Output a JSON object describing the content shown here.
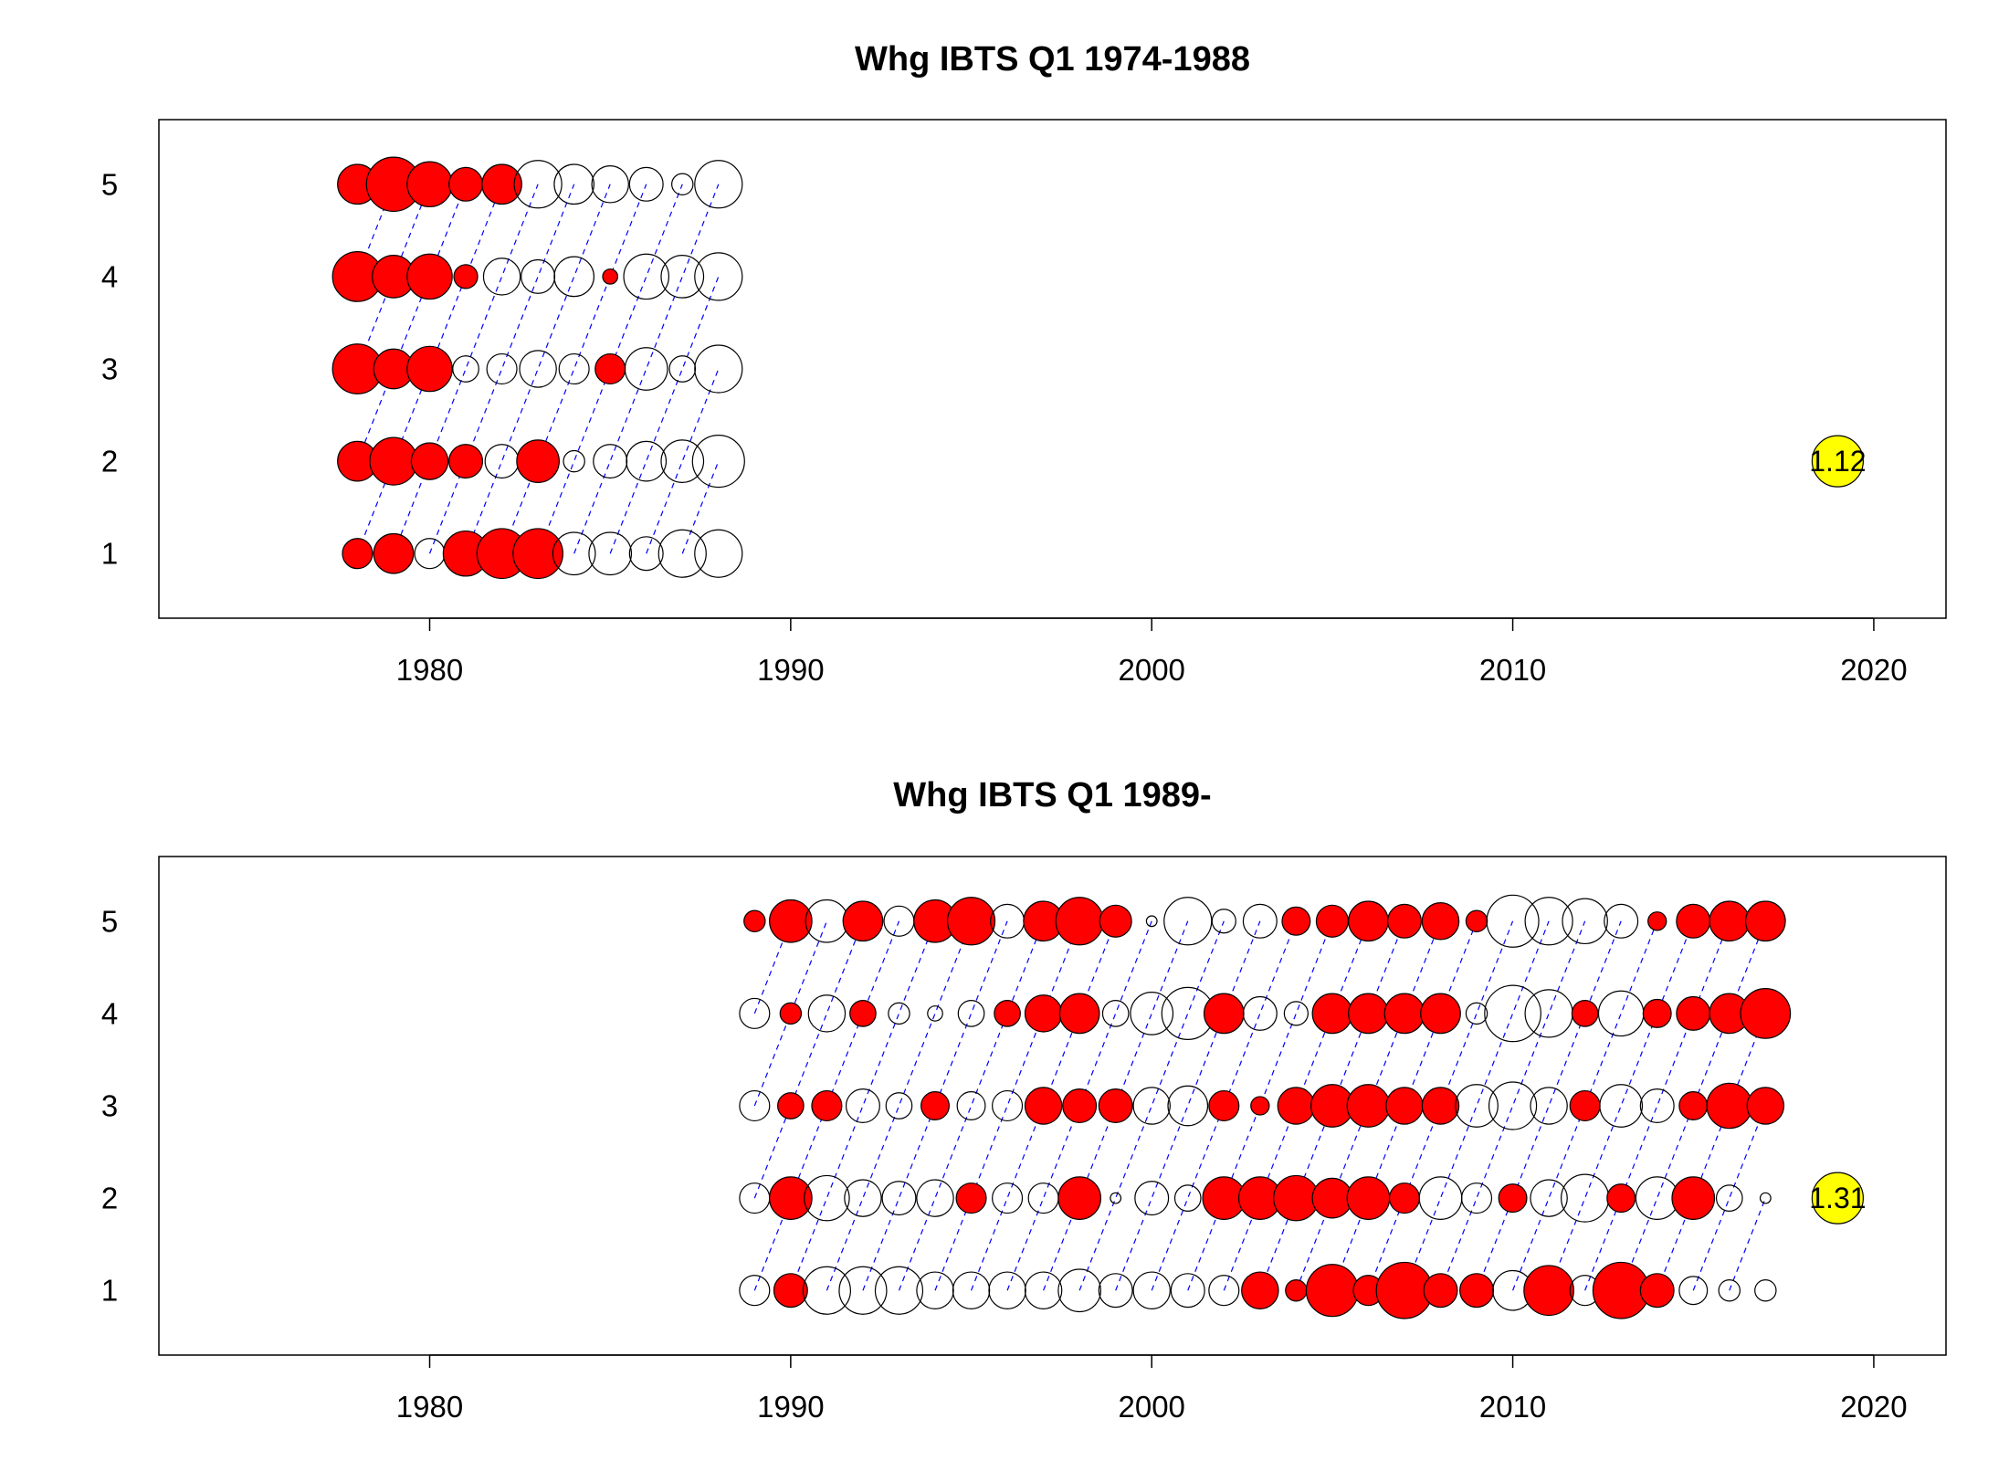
{
  "chart_data": [
    {
      "type": "scatter",
      "title": "Whg IBTS Q1 1974-1988",
      "xlabel": "",
      "ylabel": "",
      "x_ticks": [
        1980,
        1990,
        2000,
        2010,
        2020
      ],
      "y_ticks": [
        1,
        2,
        3,
        4,
        5
      ],
      "xlim": [
        1972.5,
        2022
      ],
      "ylim": [
        0.3,
        5.7
      ],
      "grid": false,
      "legend": "none",
      "colors": {
        "positive": "#ff0000",
        "negative": "none",
        "highlight": "#ffff00",
        "cohort_line": "#0000ff"
      },
      "ages": [
        1,
        2,
        3,
        4,
        5
      ],
      "years": [
        1978,
        1979,
        1980,
        1981,
        1982,
        1983,
        1984,
        1985,
        1986,
        1987,
        1988
      ],
      "residuals": {
        "1": [
          0.4,
          0.7,
          -0.4,
          0.9,
          1.1,
          1.1,
          -0.8,
          -0.8,
          -0.5,
          -1.0,
          -1.0
        ],
        "2": [
          0.7,
          1.0,
          0.6,
          0.5,
          -0.5,
          0.8,
          -0.2,
          -0.5,
          -0.7,
          -0.8,
          -1.2
        ],
        "3": [
          1.1,
          0.7,
          0.9,
          -0.3,
          -0.4,
          -0.6,
          -0.4,
          0.4,
          -0.8,
          -0.3,
          -1.0
        ],
        "4": [
          1.1,
          0.8,
          0.9,
          0.25,
          -0.6,
          -0.5,
          -0.7,
          0.1,
          -0.9,
          -0.8,
          -1.0
        ],
        "5": [
          0.7,
          1.3,
          0.9,
          0.5,
          0.7,
          -1.0,
          -0.7,
          -0.6,
          -0.5,
          -0.2,
          -1.0
        ]
      },
      "highlight": {
        "year": 2019,
        "age": 2,
        "label": "1.12"
      }
    },
    {
      "type": "scatter",
      "title": "Whg IBTS Q1 1989-",
      "xlabel": "",
      "ylabel": "",
      "x_ticks": [
        1980,
        1990,
        2000,
        2010,
        2020
      ],
      "y_ticks": [
        1,
        2,
        3,
        4,
        5
      ],
      "xlim": [
        1972.5,
        2022
      ],
      "ylim": [
        0.3,
        5.7
      ],
      "grid": false,
      "legend": "none",
      "colors": {
        "positive": "#ff0000",
        "negative": "none",
        "highlight": "#ffff00",
        "cohort_line": "#0000ff"
      },
      "ages": [
        1,
        2,
        3,
        4,
        5
      ],
      "years": [
        1989,
        1990,
        1991,
        1992,
        1993,
        1994,
        1995,
        1996,
        1997,
        1998,
        1999,
        2000,
        2001,
        2002,
        2003,
        2004,
        2005,
        2006,
        2007,
        2008,
        2009,
        2010,
        2011,
        2012,
        2013,
        2014,
        2015,
        2016,
        2017
      ],
      "residuals": {
        "1": [
          -0.4,
          0.5,
          -1.0,
          -1.0,
          -1.0,
          -0.6,
          -0.6,
          -0.6,
          -0.6,
          -0.8,
          -0.5,
          -0.6,
          -0.5,
          -0.4,
          0.6,
          0.2,
          1.2,
          0.4,
          1.4,
          0.5,
          0.5,
          -0.7,
          1.1,
          -0.4,
          1.4,
          0.5,
          -0.35,
          -0.2,
          -0.2
        ],
        "2": [
          -0.4,
          0.8,
          -0.9,
          -0.6,
          -0.5,
          -0.6,
          0.4,
          -0.4,
          -0.4,
          0.8,
          -0.05,
          -0.5,
          -0.3,
          0.8,
          0.8,
          0.9,
          0.7,
          0.8,
          0.4,
          -0.8,
          -0.4,
          0.35,
          -0.6,
          -1.0,
          0.35,
          -0.8,
          0.8,
          -0.3,
          -0.05
        ],
        "3": [
          -0.4,
          0.3,
          0.4,
          -0.5,
          -0.3,
          0.35,
          -0.35,
          -0.4,
          0.6,
          0.5,
          0.5,
          -0.6,
          -0.7,
          0.4,
          0.15,
          0.6,
          0.8,
          0.8,
          0.6,
          0.6,
          -0.8,
          -1.0,
          -0.6,
          0.4,
          -0.8,
          -0.5,
          0.35,
          0.9,
          0.6
        ],
        "4": [
          -0.4,
          0.2,
          -0.6,
          0.3,
          -0.2,
          -0.1,
          -0.3,
          0.3,
          0.6,
          0.7,
          -0.3,
          -0.8,
          -1.2,
          0.7,
          -0.5,
          -0.25,
          0.7,
          0.7,
          0.7,
          0.7,
          -0.2,
          -1.4,
          -1.0,
          0.3,
          -0.9,
          0.35,
          0.5,
          0.7,
          1.1
        ],
        "5": [
          0.2,
          0.8,
          -0.8,
          0.7,
          -0.4,
          0.8,
          1.0,
          -0.5,
          0.7,
          1.0,
          0.45,
          -0.05,
          -1.0,
          -0.25,
          -0.5,
          0.35,
          0.45,
          0.7,
          0.5,
          0.6,
          0.2,
          -1.2,
          -1.0,
          -0.9,
          -0.5,
          0.15,
          0.5,
          0.7,
          0.7
        ]
      },
      "highlight": {
        "year": 2019,
        "age": 2,
        "label": "1.31"
      }
    }
  ]
}
